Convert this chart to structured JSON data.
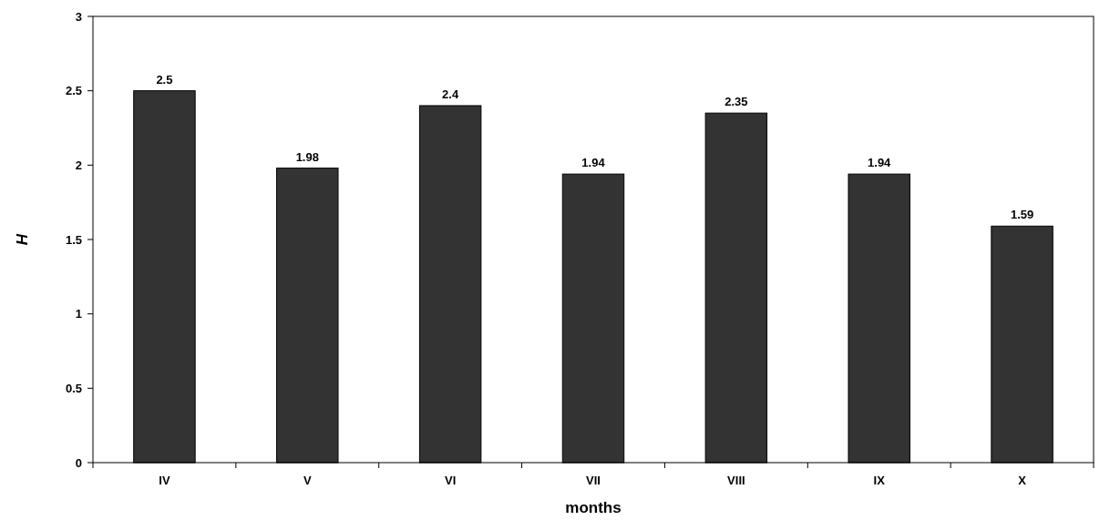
{
  "chart_data": {
    "type": "bar",
    "xlabel": "months",
    "ylabel": "H",
    "categories": [
      "IV",
      "V",
      "VI",
      "VII",
      "VIII",
      "IX",
      "X"
    ],
    "values": [
      2.5,
      1.98,
      2.4,
      1.94,
      2.35,
      1.94,
      1.59
    ],
    "color": "#333333",
    "ylim": [
      0,
      3
    ],
    "yticks": [
      0,
      0.5,
      1,
      1.5,
      2,
      2.5,
      3
    ],
    "data_labels": true
  }
}
